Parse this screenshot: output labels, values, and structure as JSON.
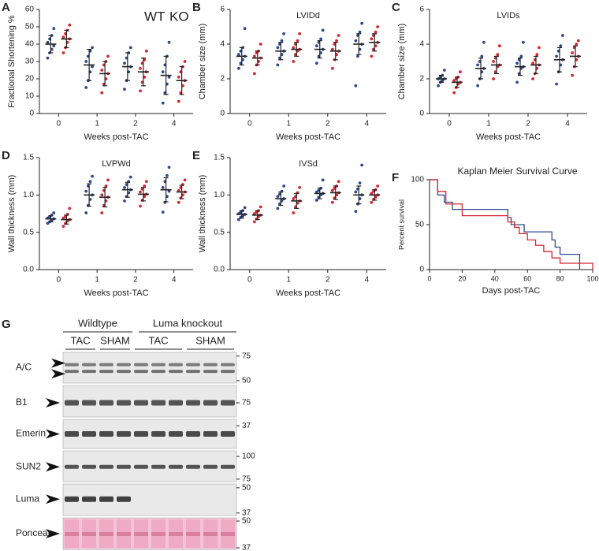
{
  "chart_data": [
    {
      "type": "dotplot",
      "label": "A",
      "ylabel": "Fractional Shortening %",
      "xlabel": "Weeks post-TAC",
      "categories": [
        "0",
        "1",
        "2",
        "4"
      ],
      "ylim": [
        0,
        60
      ],
      "yticks": [
        0,
        10,
        20,
        30,
        40,
        50,
        60
      ],
      "series": [
        {
          "name": "WT",
          "color": "#2e4a8b",
          "mean": [
            40,
            28,
            27,
            22
          ],
          "sd": [
            5,
            9,
            8,
            11
          ],
          "values": [
            [
              32,
              35,
              37,
              39,
              41,
              43,
              45,
              49
            ],
            [
              15,
              19,
              24,
              27,
              30,
              33,
              36,
              38
            ],
            [
              14,
              19,
              24,
              27,
              29,
              32,
              35,
              38
            ],
            [
              6,
              12,
              17,
              21,
              24,
              28,
              33,
              41
            ]
          ]
        },
        {
          "name": "KO",
          "color": "#d6252e",
          "mean": [
            43,
            23,
            24,
            19
          ],
          "sd": [
            5,
            7,
            8,
            8
          ],
          "values": [
            [
              35,
              38,
              41,
              43,
              44,
              46,
              48,
              51
            ],
            [
              12,
              17,
              20,
              23,
              25,
              28,
              30,
              33
            ],
            [
              13,
              18,
              21,
              24,
              26,
              29,
              31,
              36
            ],
            [
              7,
              12,
              16,
              19,
              21,
              24,
              27,
              30
            ]
          ]
        }
      ]
    },
    {
      "type": "dotplot",
      "label": "B",
      "title": "LVIDd",
      "ylabel": "Chamber size (mm)",
      "xlabel": "Weeks post-TAC",
      "categories": [
        "0",
        "1",
        "2",
        "4"
      ],
      "ylim": [
        0,
        6
      ],
      "yticks": [
        0,
        2,
        4,
        6
      ],
      "series": [
        {
          "color": "#2e4a8b",
          "mean": [
            3.3,
            3.6,
            3.7,
            4.0
          ],
          "sd": [
            0.5,
            0.5,
            0.5,
            0.6
          ],
          "values": [
            [
              2.6,
              2.9,
              3.1,
              3.3,
              3.4,
              3.6,
              3.8,
              4.9
            ],
            [
              2.8,
              3.2,
              3.4,
              3.6,
              3.8,
              4.0,
              4.2,
              4.6
            ],
            [
              2.9,
              3.3,
              3.5,
              3.7,
              3.9,
              4.1,
              4.3,
              4.8
            ],
            [
              1.6,
              3.3,
              3.7,
              4.0,
              4.2,
              4.5,
              4.7,
              5.2
            ]
          ]
        },
        {
          "color": "#d6252e",
          "mean": [
            3.2,
            3.7,
            3.6,
            4.1
          ],
          "sd": [
            0.4,
            0.4,
            0.5,
            0.5
          ],
          "values": [
            [
              2.3,
              2.8,
              3.0,
              3.2,
              3.3,
              3.5,
              3.6,
              4.0
            ],
            [
              3.0,
              3.4,
              3.6,
              3.7,
              3.8,
              4.0,
              4.2,
              4.6
            ],
            [
              2.6,
              3.1,
              3.4,
              3.6,
              3.7,
              4.0,
              4.2,
              4.5
            ],
            [
              3.3,
              3.7,
              3.9,
              4.1,
              4.3,
              4.5,
              4.7,
              5.0
            ]
          ]
        }
      ]
    },
    {
      "type": "dotplot",
      "label": "C",
      "title": "LVIDs",
      "ylabel": "Chamber size (mm)",
      "xlabel": "Weeks post-TAC",
      "categories": [
        "0",
        "1",
        "2",
        "4"
      ],
      "ylim": [
        0,
        6
      ],
      "yticks": [
        0,
        2,
        4,
        6
      ],
      "series": [
        {
          "color": "#2e4a8b",
          "mean": [
            2.0,
            2.6,
            2.7,
            3.1
          ],
          "sd": [
            0.2,
            0.6,
            0.5,
            0.7
          ],
          "values": [
            [
              1.6,
              1.8,
              1.9,
              2.0,
              2.0,
              2.1,
              2.2,
              2.5
            ],
            [
              1.6,
              2.0,
              2.4,
              2.6,
              2.8,
              3.0,
              3.3,
              4.1
            ],
            [
              1.8,
              2.3,
              2.6,
              2.7,
              2.9,
              3.1,
              3.3,
              4.1
            ],
            [
              1.7,
              2.4,
              2.8,
              3.1,
              3.3,
              3.6,
              3.9,
              4.5
            ]
          ]
        },
        {
          "color": "#d6252e",
          "mean": [
            1.8,
            2.8,
            2.8,
            3.3
          ],
          "sd": [
            0.3,
            0.5,
            0.5,
            0.6
          ],
          "values": [
            [
              1.2,
              1.5,
              1.7,
              1.8,
              1.9,
              2.0,
              2.1,
              2.4
            ],
            [
              2.0,
              2.4,
              2.7,
              2.8,
              3.0,
              3.2,
              3.4,
              3.9
            ],
            [
              2.0,
              2.3,
              2.6,
              2.8,
              2.9,
              3.1,
              3.4,
              3.8
            ],
            [
              2.2,
              2.7,
              3.1,
              3.3,
              3.5,
              3.8,
              4.0,
              4.2
            ]
          ]
        }
      ]
    },
    {
      "type": "dotplot",
      "label": "D",
      "title": "LVPWd",
      "ylabel": "Wall thickness (mm)",
      "xlabel": "Weeks post-TAC",
      "categories": [
        "0",
        "1",
        "2",
        "4"
      ],
      "ylim": [
        0,
        1.5
      ],
      "yticks": [
        {
          "value": 0,
          "label": "0.0"
        },
        {
          "value": 0.5,
          "label": "0.5"
        },
        {
          "value": 1,
          "label": "1.0"
        },
        {
          "value": 1.5,
          "label": "1.5"
        }
      ],
      "series": [
        {
          "color": "#2e4a8b",
          "mean": [
            0.68,
            1.0,
            1.07,
            1.07
          ],
          "sd": [
            0.04,
            0.15,
            0.1,
            0.16
          ],
          "values": [
            [
              0.62,
              0.64,
              0.66,
              0.68,
              0.69,
              0.71,
              0.73,
              0.76
            ],
            [
              0.76,
              0.86,
              0.94,
              1.0,
              1.05,
              1.12,
              1.18,
              1.25
            ],
            [
              0.92,
              0.98,
              1.03,
              1.07,
              1.1,
              1.14,
              1.18,
              1.24
            ],
            [
              0.77,
              0.9,
              0.98,
              1.05,
              1.1,
              1.18,
              1.26,
              1.37
            ]
          ]
        },
        {
          "color": "#d6252e",
          "mean": [
            0.67,
            0.97,
            1.01,
            1.04
          ],
          "sd": [
            0.06,
            0.13,
            0.09,
            0.09
          ],
          "values": [
            [
              0.58,
              0.62,
              0.65,
              0.67,
              0.69,
              0.71,
              0.74,
              0.82
            ],
            [
              0.76,
              0.86,
              0.92,
              0.97,
              1.0,
              1.06,
              1.12,
              1.2
            ],
            [
              0.85,
              0.93,
              0.98,
              1.01,
              1.04,
              1.08,
              1.12,
              1.18
            ],
            [
              0.9,
              0.96,
              1.0,
              1.04,
              1.06,
              1.1,
              1.14,
              1.2
            ]
          ]
        }
      ]
    },
    {
      "type": "dotplot",
      "label": "E",
      "title": "IVSd",
      "ylabel": "Wall thickness (mm)",
      "xlabel": "Weeks post-TAC",
      "categories": [
        "0",
        "1",
        "2",
        "4"
      ],
      "ylim": [
        0,
        1.5
      ],
      "yticks": [
        {
          "value": 0,
          "label": "0.0"
        },
        {
          "value": 0.5,
          "label": "0.5"
        },
        {
          "value": 1,
          "label": "1.0"
        },
        {
          "value": 1.5,
          "label": "1.5"
        }
      ],
      "series": [
        {
          "color": "#2e4a8b",
          "mean": [
            0.74,
            0.95,
            1.02,
            1.0
          ],
          "sd": [
            0.05,
            0.09,
            0.07,
            0.12
          ],
          "values": [
            [
              0.67,
              0.7,
              0.72,
              0.74,
              0.75,
              0.77,
              0.79,
              0.83
            ],
            [
              0.82,
              0.88,
              0.92,
              0.95,
              0.98,
              1.01,
              1.05,
              1.12
            ],
            [
              0.93,
              0.97,
              1.0,
              1.02,
              1.04,
              1.06,
              1.09,
              1.2
            ],
            [
              0.78,
              0.88,
              0.95,
              1.0,
              1.04,
              1.08,
              1.16,
              1.4
            ]
          ]
        },
        {
          "color": "#d6252e",
          "mean": [
            0.73,
            0.92,
            1.03,
            1.0
          ],
          "sd": [
            0.06,
            0.1,
            0.09,
            0.07
          ],
          "values": [
            [
              0.64,
              0.68,
              0.71,
              0.73,
              0.75,
              0.77,
              0.79,
              0.84
            ],
            [
              0.76,
              0.84,
              0.89,
              0.92,
              0.95,
              0.98,
              1.03,
              1.1
            ],
            [
              0.9,
              0.96,
              1.0,
              1.03,
              1.06,
              1.09,
              1.12,
              1.18
            ],
            [
              0.9,
              0.94,
              0.97,
              1.0,
              1.02,
              1.05,
              1.07,
              1.12
            ]
          ]
        }
      ]
    },
    {
      "type": "survival",
      "label": "F",
      "title": "Kaplan Meier Survival Curve",
      "ylabel": "Percent survival",
      "xlabel": "Days post-TAC",
      "xlim": [
        0,
        100
      ],
      "xticks": [
        0,
        20,
        40,
        60,
        80,
        100
      ],
      "ylim": [
        0,
        100
      ],
      "yticks": [
        0,
        50,
        100
      ],
      "series": [
        {
          "color": "#2e4a8b",
          "x": [
            0,
            5,
            9,
            14,
            48,
            50,
            58,
            75,
            77,
            80,
            92
          ],
          "values": [
            100,
            83,
            75,
            67,
            58,
            50,
            42,
            33,
            25,
            17,
            0
          ]
        },
        {
          "color": "#d6252e",
          "x": [
            0,
            5,
            10,
            20,
            48,
            52,
            55,
            60,
            65,
            70,
            75,
            80,
            100
          ],
          "values": [
            100,
            87,
            73,
            60,
            53,
            47,
            40,
            33,
            27,
            20,
            13,
            7,
            0
          ]
        }
      ]
    }
  ],
  "blot": {
    "label": "G",
    "groups": [
      {
        "label": "Wildtype",
        "color": "#2e4a8b"
      },
      {
        "label": "Luma knockout",
        "color": "#d6252e"
      }
    ],
    "conditions": [
      "TAC",
      "SHAM",
      "TAC",
      "SHAM"
    ],
    "rows": [
      {
        "label": "A/C",
        "markers": [
          "75",
          "50"
        ]
      },
      {
        "label": "B1",
        "markers": [
          "75"
        ]
      },
      {
        "label": "Emerin",
        "markers": [
          "37"
        ]
      },
      {
        "label": "SUN2",
        "markers": [
          "100",
          "75"
        ]
      },
      {
        "label": "Luma",
        "markers": [
          "50",
          "37"
        ]
      },
      {
        "label": "Ponceau",
        "markers": [
          "50",
          "37"
        ]
      }
    ]
  }
}
